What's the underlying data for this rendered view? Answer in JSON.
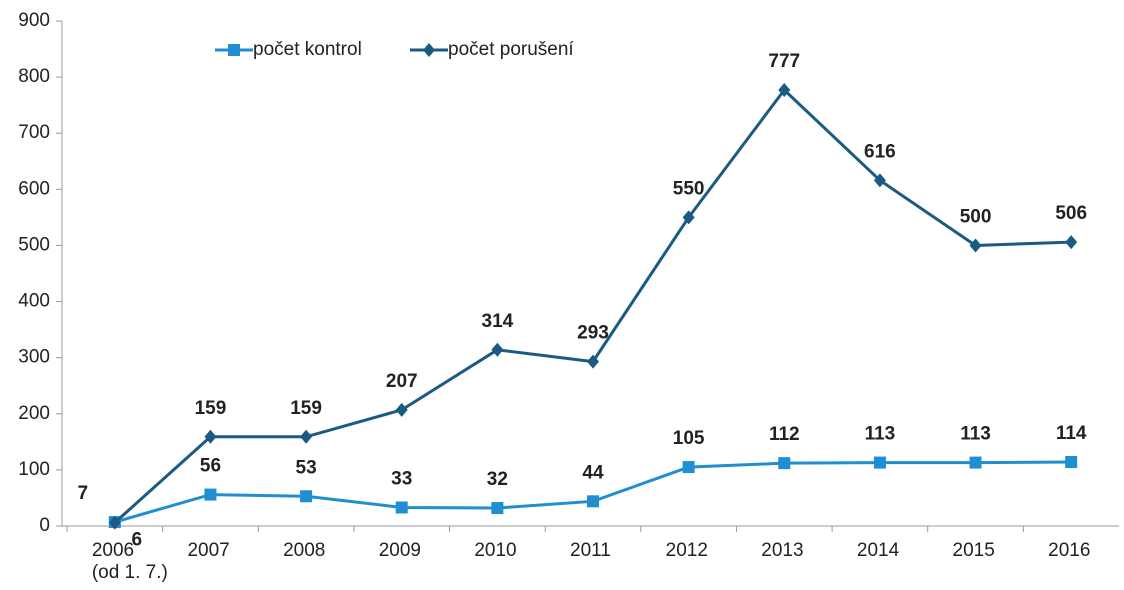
{
  "chart_data": {
    "type": "line",
    "categories": [
      "2006\n(od 1. 7.)",
      "2007",
      "2008",
      "2009",
      "2010",
      "2011",
      "2012",
      "2013",
      "2014",
      "2015",
      "2016"
    ],
    "series": [
      {
        "name": "počet kontrol",
        "color": "#1f8fd2",
        "marker": "square",
        "values": [
          7,
          56,
          53,
          33,
          32,
          44,
          105,
          112,
          113,
          113,
          114
        ]
      },
      {
        "name": "počet porušení",
        "color": "#1b5a82",
        "marker": "diamond",
        "values": [
          6,
          159,
          159,
          207,
          314,
          293,
          550,
          777,
          616,
          500,
          506
        ]
      }
    ],
    "ylim": [
      0,
      900
    ],
    "yticks": [
      0,
      100,
      200,
      300,
      400,
      500,
      600,
      700,
      800,
      900
    ],
    "grid": false,
    "legend": "top"
  }
}
